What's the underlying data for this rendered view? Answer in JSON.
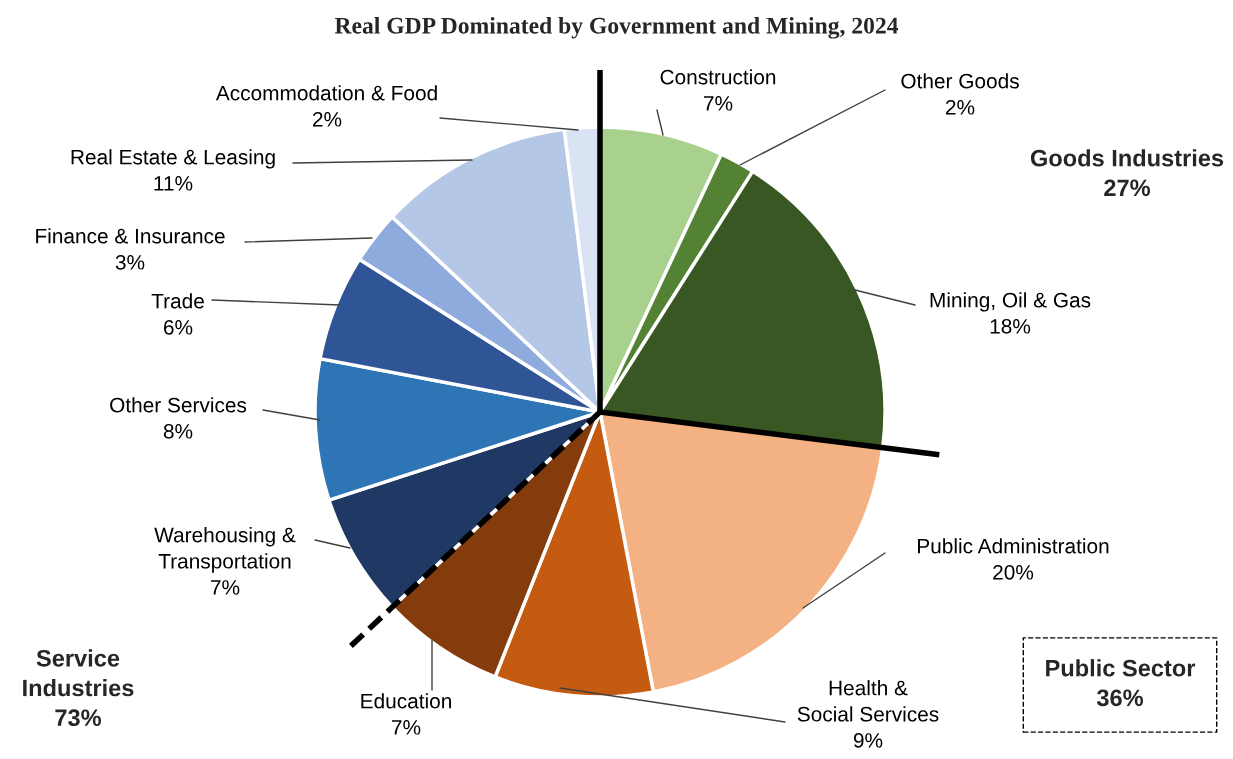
{
  "chart_data": {
    "type": "pie",
    "title": "Real GDP Dominated by Government and Mining, 2024",
    "categories": [
      "Construction",
      "Other Goods",
      "Mining, Oil & Gas",
      "Public Administration",
      "Health &\nSocial Services",
      "Education",
      "Warehousing &\nTransportation",
      "Other Services",
      "Trade",
      "Finance & Insurance",
      "Real Estate & Leasing",
      "Accommodation & Food"
    ],
    "values": [
      7,
      2,
      18,
      20,
      9,
      7,
      7,
      8,
      6,
      3,
      11,
      2
    ],
    "value_labels": [
      "7%",
      "2%",
      "18%",
      "20%",
      "9%",
      "7%",
      "7%",
      "8%",
      "6%",
      "3%",
      "11%",
      "2%"
    ],
    "colors": [
      "#a9d18e",
      "#548235",
      "#385723",
      "#f4b183",
      "#c55a11",
      "#843c0c",
      "#203864",
      "#2e75b6",
      "#2f5597",
      "#8faadc",
      "#b4c7e7",
      "#dae3f3"
    ],
    "annotations": [
      "Goods Industries\n27%",
      "Service\nIndustries\n73%",
      "Public Sector\n36%"
    ],
    "legend": false
  }
}
